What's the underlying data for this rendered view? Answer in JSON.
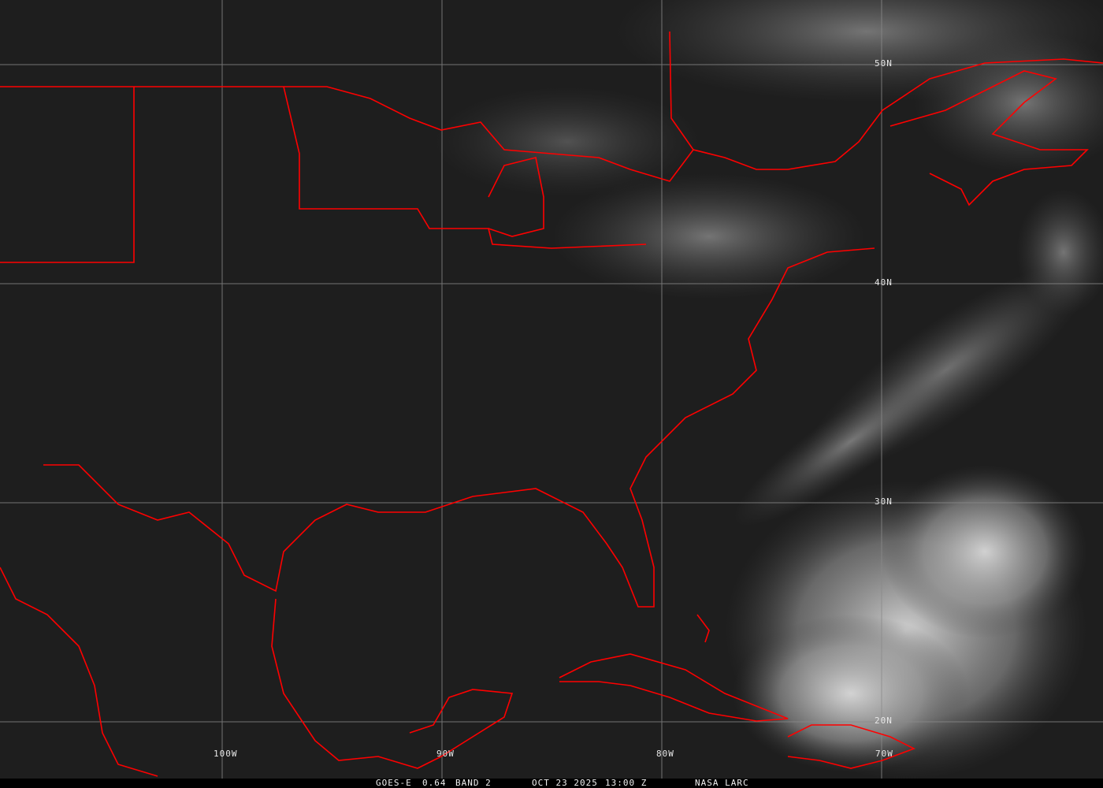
{
  "image": {
    "satellite": "GOES-E",
    "channel": "0.64",
    "band": "BAND 2",
    "date": "OCT 23 2025",
    "time": "13:00 Z",
    "source": "NASA LARC"
  },
  "grid": {
    "longitude_labels": [
      "100W",
      "90W",
      "80W",
      "70W"
    ],
    "latitude_labels": [
      "50N",
      "40N",
      "30N",
      "20N"
    ],
    "grid_color": "#8a8a8a"
  },
  "colors": {
    "boundaries": "#ff0000",
    "background": "#1e1e1e",
    "caption_bar": "#000000"
  }
}
